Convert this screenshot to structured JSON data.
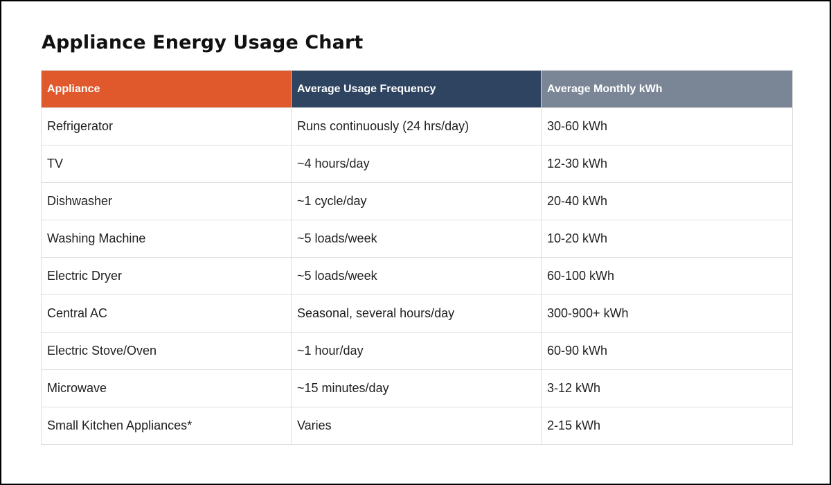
{
  "title": "Appliance Energy Usage Chart",
  "colors": {
    "header_appliance": "#e0592c",
    "header_frequency": "#2e4460",
    "header_kwh": "#7a8696"
  },
  "table": {
    "headers": [
      "Appliance",
      "Average Usage Frequency",
      "Average Monthly kWh"
    ],
    "rows": [
      [
        "Refrigerator",
        "Runs continuously (24 hrs/day)",
        "30-60 kWh"
      ],
      [
        "TV",
        "~4 hours/day",
        "12-30 kWh"
      ],
      [
        "Dishwasher",
        "~1 cycle/day",
        "20-40 kWh"
      ],
      [
        "Washing Machine",
        "~5 loads/week",
        "10-20 kWh"
      ],
      [
        "Electric Dryer",
        "~5 loads/week",
        "60-100 kWh"
      ],
      [
        "Central AC",
        "Seasonal, several hours/day",
        "300-900+ kWh"
      ],
      [
        "Electric Stove/Oven",
        "~1 hour/day",
        "60-90 kWh"
      ],
      [
        "Microwave",
        "~15 minutes/day",
        "3-12 kWh"
      ],
      [
        "Small Kitchen Appliances*",
        "Varies",
        "2-15 kWh"
      ]
    ]
  }
}
